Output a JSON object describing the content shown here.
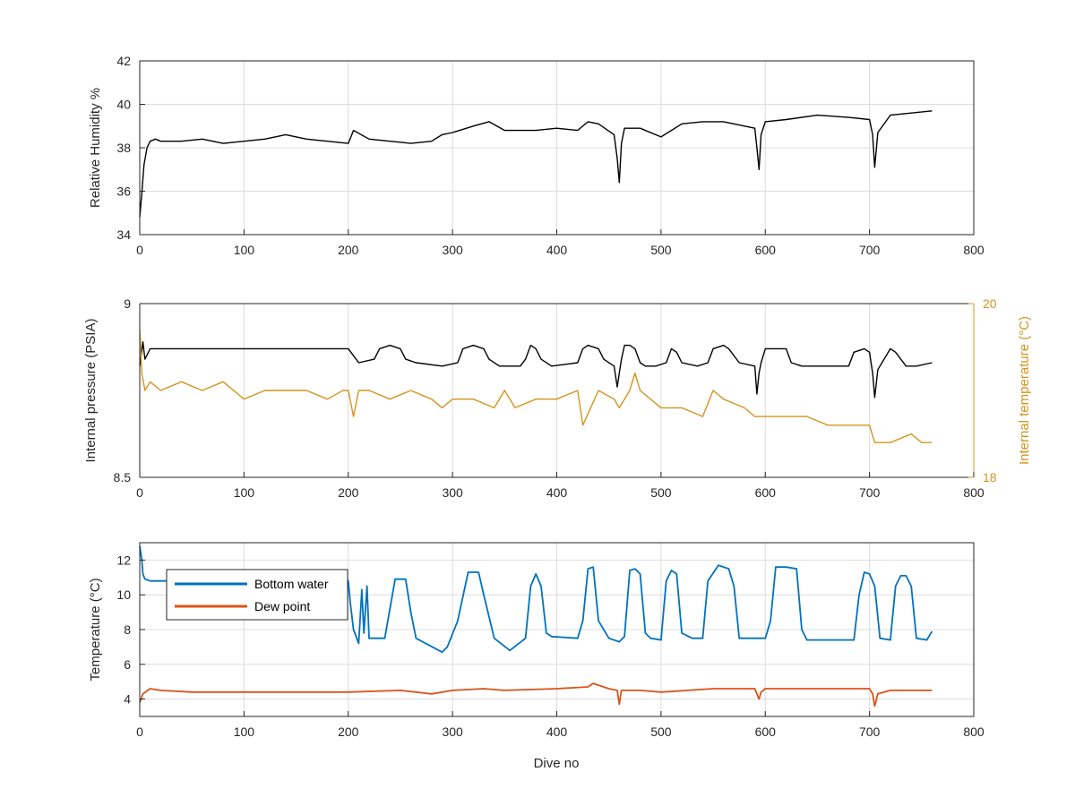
{
  "chart_data": [
    {
      "type": "line",
      "xlabel": "",
      "ylabel": "Relative Humidity %",
      "xlim": [
        0,
        800
      ],
      "ylim": [
        34,
        42
      ],
      "xticks": [
        "0",
        "100",
        "200",
        "300",
        "400",
        "500",
        "600",
        "700",
        "800"
      ],
      "yticks": [
        "34",
        "36",
        "38",
        "40",
        "42"
      ],
      "grid": true,
      "series": [
        {
          "color": "#000000",
          "x": [
            0,
            2,
            4,
            7,
            10,
            15,
            20,
            40,
            60,
            80,
            100,
            120,
            140,
            160,
            180,
            200,
            205,
            220,
            240,
            260,
            280,
            290,
            300,
            320,
            335,
            350,
            380,
            400,
            420,
            430,
            440,
            455,
            458,
            460,
            462,
            465,
            480,
            500,
            520,
            540,
            560,
            590,
            592,
            594,
            596,
            600,
            620,
            650,
            680,
            700,
            703,
            705,
            708,
            720,
            740,
            760
          ],
          "y": [
            34.8,
            35.9,
            37.2,
            38.0,
            38.3,
            38.4,
            38.3,
            38.3,
            38.4,
            38.2,
            38.3,
            38.4,
            38.6,
            38.4,
            38.3,
            38.2,
            38.8,
            38.4,
            38.3,
            38.2,
            38.3,
            38.6,
            38.7,
            39.0,
            39.2,
            38.8,
            38.8,
            38.9,
            38.8,
            39.2,
            39.1,
            38.6,
            37.5,
            36.4,
            38.2,
            38.9,
            38.9,
            38.5,
            39.1,
            39.2,
            39.2,
            38.9,
            38.0,
            37.0,
            38.6,
            39.2,
            39.3,
            39.5,
            39.4,
            39.3,
            38.6,
            37.1,
            38.7,
            39.5,
            39.6,
            39.7
          ]
        }
      ]
    },
    {
      "type": "line",
      "xlabel": "",
      "ylabel": "Internal pressure (PSIA)",
      "y2label": "Internal temperature (°C)",
      "xlim": [
        0,
        800
      ],
      "ylim": [
        8.5,
        9
      ],
      "y2lim": [
        18,
        20
      ],
      "xticks": [
        "0",
        "100",
        "200",
        "300",
        "400",
        "500",
        "600",
        "700",
        "800"
      ],
      "yticks": [
        "8.5",
        "9"
      ],
      "y2ticks": [
        "18",
        "20"
      ],
      "grid": true,
      "series": [
        {
          "axis": "left",
          "color": "#000000",
          "x": [
            0,
            3,
            5,
            10,
            30,
            60,
            100,
            150,
            200,
            205,
            210,
            225,
            230,
            240,
            250,
            255,
            265,
            290,
            305,
            310,
            320,
            330,
            335,
            345,
            365,
            370,
            375,
            380,
            385,
            395,
            420,
            425,
            430,
            440,
            445,
            455,
            458,
            460,
            462,
            465,
            470,
            475,
            480,
            485,
            495,
            505,
            510,
            515,
            520,
            535,
            545,
            550,
            560,
            565,
            575,
            590,
            592,
            594,
            596,
            600,
            610,
            620,
            625,
            635,
            680,
            685,
            695,
            700,
            703,
            705,
            708,
            720,
            725,
            735,
            745,
            760
          ],
          "y": [
            8.82,
            8.89,
            8.84,
            8.87,
            8.87,
            8.87,
            8.87,
            8.87,
            8.87,
            8.85,
            8.83,
            8.84,
            8.87,
            8.88,
            8.87,
            8.84,
            8.83,
            8.82,
            8.83,
            8.87,
            8.88,
            8.87,
            8.84,
            8.82,
            8.82,
            8.84,
            8.88,
            8.87,
            8.84,
            8.82,
            8.83,
            8.87,
            8.88,
            8.87,
            8.84,
            8.82,
            8.76,
            8.8,
            8.84,
            8.88,
            8.88,
            8.87,
            8.83,
            8.82,
            8.82,
            8.83,
            8.87,
            8.86,
            8.83,
            8.82,
            8.83,
            8.87,
            8.88,
            8.87,
            8.83,
            8.82,
            8.74,
            8.8,
            8.83,
            8.87,
            8.87,
            8.87,
            8.83,
            8.82,
            8.82,
            8.86,
            8.87,
            8.86,
            8.8,
            8.73,
            8.81,
            8.87,
            8.86,
            8.82,
            8.82,
            8.83
          ]
        },
        {
          "axis": "right",
          "color": "#D4941C",
          "x": [
            0,
            2,
            5,
            10,
            20,
            40,
            60,
            80,
            100,
            120,
            140,
            160,
            180,
            195,
            200,
            205,
            210,
            220,
            240,
            260,
            280,
            290,
            300,
            320,
            340,
            350,
            360,
            380,
            400,
            420,
            425,
            440,
            455,
            460,
            470,
            475,
            480,
            500,
            520,
            540,
            550,
            560,
            580,
            590,
            600,
            620,
            640,
            660,
            680,
            700,
            705,
            720,
            740,
            750,
            760
          ],
          "y": [
            19.7,
            19.2,
            19.0,
            19.1,
            19.0,
            19.1,
            19.0,
            19.1,
            18.9,
            19.0,
            19.0,
            19.0,
            18.9,
            19.0,
            19.0,
            18.7,
            19.0,
            19.0,
            18.9,
            19.0,
            18.9,
            18.8,
            18.9,
            18.9,
            18.8,
            19.0,
            18.8,
            18.9,
            18.9,
            19.0,
            18.6,
            19.0,
            18.9,
            18.8,
            19.0,
            19.2,
            19.0,
            18.8,
            18.8,
            18.7,
            19.0,
            18.9,
            18.8,
            18.7,
            18.7,
            18.7,
            18.7,
            18.6,
            18.6,
            18.6,
            18.4,
            18.4,
            18.5,
            18.4,
            18.4
          ]
        }
      ]
    },
    {
      "type": "line",
      "xlabel": "Dive no",
      "ylabel": "Temperature (°C)",
      "xlim": [
        0,
        800
      ],
      "ylim": [
        3,
        13
      ],
      "xticks": [
        "0",
        "100",
        "200",
        "300",
        "400",
        "500",
        "600",
        "700",
        "800"
      ],
      "yticks": [
        "4",
        "6",
        "8",
        "10",
        "12"
      ],
      "grid": true,
      "legend": "top-left",
      "series": [
        {
          "name": "Bottom water",
          "color": "#0072BD",
          "x": [
            0,
            2,
            3,
            5,
            10,
            30,
            50,
            100,
            150,
            195,
            200,
            202,
            205,
            210,
            213,
            215,
            218,
            220,
            235,
            245,
            255,
            260,
            265,
            290,
            295,
            305,
            315,
            325,
            330,
            340,
            355,
            370,
            375,
            380,
            385,
            390,
            395,
            420,
            425,
            430,
            435,
            440,
            450,
            460,
            465,
            470,
            475,
            480,
            485,
            490,
            500,
            505,
            510,
            515,
            520,
            530,
            540,
            545,
            555,
            565,
            570,
            575,
            600,
            605,
            610,
            620,
            630,
            635,
            640,
            685,
            690,
            695,
            700,
            705,
            710,
            720,
            725,
            730,
            735,
            740,
            745,
            755,
            760
          ],
          "y": [
            12.8,
            12.0,
            11.2,
            10.9,
            10.8,
            10.8,
            10.8,
            10.8,
            10.8,
            10.8,
            10.8,
            9.5,
            8.0,
            7.2,
            10.3,
            7.8,
            10.5,
            7.5,
            7.5,
            10.9,
            10.9,
            9.0,
            7.5,
            6.7,
            7.0,
            8.5,
            11.3,
            11.3,
            10.0,
            7.5,
            6.8,
            7.5,
            10.5,
            11.2,
            10.5,
            7.8,
            7.6,
            7.5,
            8.5,
            11.5,
            11.6,
            8.5,
            7.5,
            7.3,
            7.6,
            11.4,
            11.5,
            11.2,
            7.8,
            7.5,
            7.4,
            10.8,
            11.4,
            11.2,
            7.8,
            7.5,
            7.5,
            10.8,
            11.7,
            11.5,
            10.5,
            7.5,
            7.5,
            8.5,
            11.6,
            11.6,
            11.5,
            8.0,
            7.4,
            7.4,
            10.0,
            11.3,
            11.2,
            10.5,
            7.5,
            7.4,
            10.5,
            11.1,
            11.1,
            10.5,
            7.5,
            7.4,
            7.9
          ]
        },
        {
          "name": "Dew point",
          "color": "#D95319",
          "x": [
            0,
            3,
            10,
            20,
            50,
            100,
            150,
            200,
            250,
            280,
            300,
            330,
            350,
            400,
            430,
            435,
            450,
            458,
            460,
            462,
            480,
            500,
            550,
            590,
            594,
            596,
            600,
            650,
            700,
            703,
            705,
            708,
            720,
            740,
            760
          ],
          "y": [
            3.8,
            4.3,
            4.6,
            4.5,
            4.4,
            4.4,
            4.4,
            4.4,
            4.5,
            4.3,
            4.5,
            4.6,
            4.5,
            4.6,
            4.7,
            4.9,
            4.6,
            4.5,
            3.7,
            4.5,
            4.5,
            4.4,
            4.6,
            4.6,
            4.0,
            4.4,
            4.6,
            4.6,
            4.6,
            4.3,
            3.6,
            4.3,
            4.5,
            4.5,
            4.5
          ]
        }
      ]
    }
  ]
}
